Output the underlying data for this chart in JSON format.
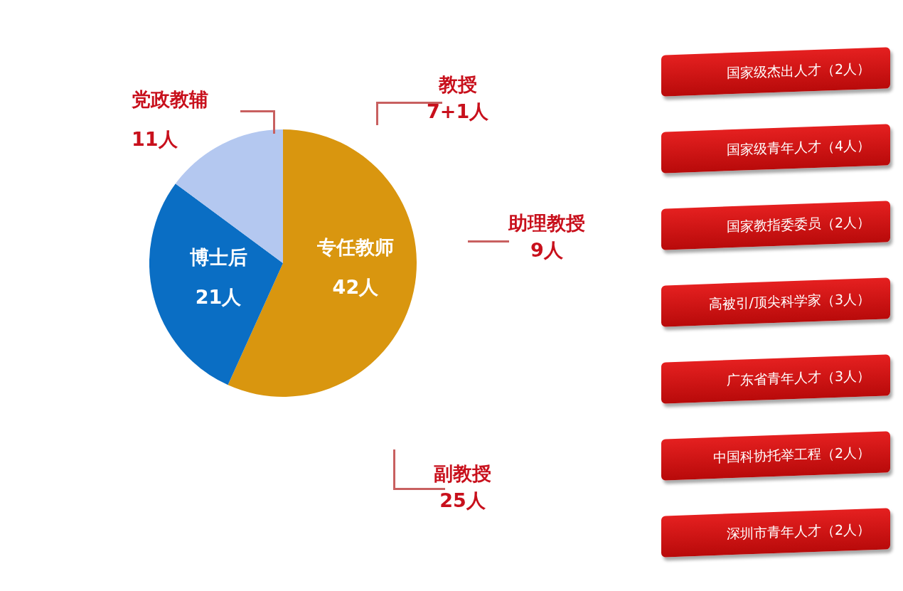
{
  "chart_data": {
    "type": "pie",
    "categories": [
      "专任教师",
      "博士后",
      "党政教辅"
    ],
    "values": [
      42,
      21,
      11
    ],
    "value_labels": [
      "42人",
      "21人",
      "11人"
    ],
    "colors": [
      "#d9960f",
      "#0a6ec4",
      "#b4c8f0"
    ],
    "annotations": [
      "教授\n7+1人",
      "助理教授\n9人",
      "副教授\n25人",
      "国家级杰出人才（2人）",
      "国家级青年人才（4人）",
      "国家教指委委员（2人）",
      "高被引/顶尖科学家（3人）",
      "广东省青年人才（3人）",
      "中国科协托举工程（2人）",
      "深圳市青年人才（2人）"
    ]
  }
}
